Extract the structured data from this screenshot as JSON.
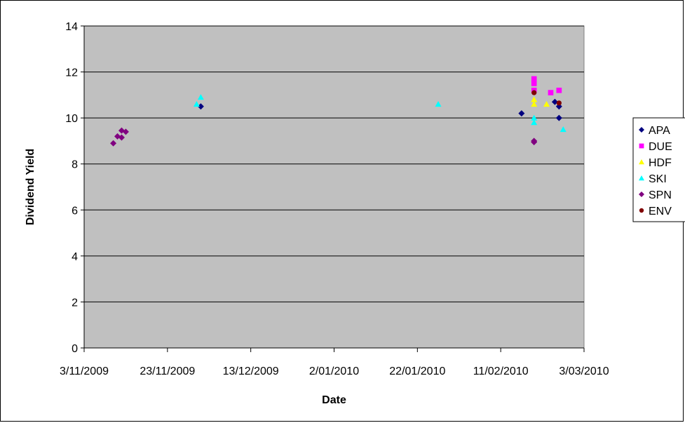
{
  "chart_data": {
    "type": "scatter",
    "title": "",
    "xlabel": "Date",
    "ylabel": "Dividend Yield",
    "xlim": [
      "2009-11-03",
      "2010-03-03"
    ],
    "ylim": [
      0,
      14
    ],
    "x_tick_labels": [
      "3/11/2009",
      "23/11/2009",
      "13/12/2009",
      "2/01/2010",
      "22/01/2010",
      "11/02/2010",
      "3/03/2010"
    ],
    "y_tick_labels": [
      "0",
      "2",
      "4",
      "6",
      "8",
      "10",
      "12",
      "14"
    ],
    "plot_background": "#c0c0c0",
    "grid": "horizontal",
    "legend_position": "right",
    "series": [
      {
        "name": "APA",
        "marker": "diamond",
        "color": "#000080",
        "points": [
          {
            "x": "2009-12-01",
            "y": 10.5
          },
          {
            "x": "2010-02-16",
            "y": 10.2
          },
          {
            "x": "2010-02-24",
            "y": 10.7
          },
          {
            "x": "2010-02-25",
            "y": 10.5
          },
          {
            "x": "2010-02-25",
            "y": 10.0
          }
        ]
      },
      {
        "name": "DUE",
        "marker": "square",
        "color": "#ff00ff",
        "points": [
          {
            "x": "2010-02-19",
            "y": 11.7
          },
          {
            "x": "2010-02-19",
            "y": 11.5
          },
          {
            "x": "2010-02-19",
            "y": 11.2
          },
          {
            "x": "2010-02-23",
            "y": 11.1
          },
          {
            "x": "2010-02-25",
            "y": 11.2
          }
        ]
      },
      {
        "name": "HDF",
        "marker": "triangle",
        "color": "#ffff00",
        "points": [
          {
            "x": "2010-02-19",
            "y": 10.8
          },
          {
            "x": "2010-02-19",
            "y": 10.6
          },
          {
            "x": "2010-02-22",
            "y": 10.6
          }
        ]
      },
      {
        "name": "SKI",
        "marker": "triangle",
        "color": "#00ffff",
        "points": [
          {
            "x": "2009-11-30",
            "y": 10.6
          },
          {
            "x": "2009-12-01",
            "y": 10.9
          },
          {
            "x": "2010-01-27",
            "y": 10.6
          },
          {
            "x": "2010-02-19",
            "y": 10.0
          },
          {
            "x": "2010-02-19",
            "y": 9.8
          },
          {
            "x": "2010-02-26",
            "y": 9.5
          }
        ]
      },
      {
        "name": "SPN",
        "marker": "diamond",
        "color": "#800080",
        "points": [
          {
            "x": "2009-11-10",
            "y": 8.9
          },
          {
            "x": "2009-11-11",
            "y": 9.2
          },
          {
            "x": "2009-11-12",
            "y": 9.45
          },
          {
            "x": "2009-11-12",
            "y": 9.15
          },
          {
            "x": "2009-11-13",
            "y": 9.4
          },
          {
            "x": "2010-02-19",
            "y": 9.0
          },
          {
            "x": "2010-02-19",
            "y": 8.95
          }
        ]
      },
      {
        "name": "ENV",
        "marker": "circle",
        "color": "#800000",
        "points": [
          {
            "x": "2010-02-19",
            "y": 11.1
          },
          {
            "x": "2010-02-25",
            "y": 10.65
          }
        ]
      }
    ]
  }
}
